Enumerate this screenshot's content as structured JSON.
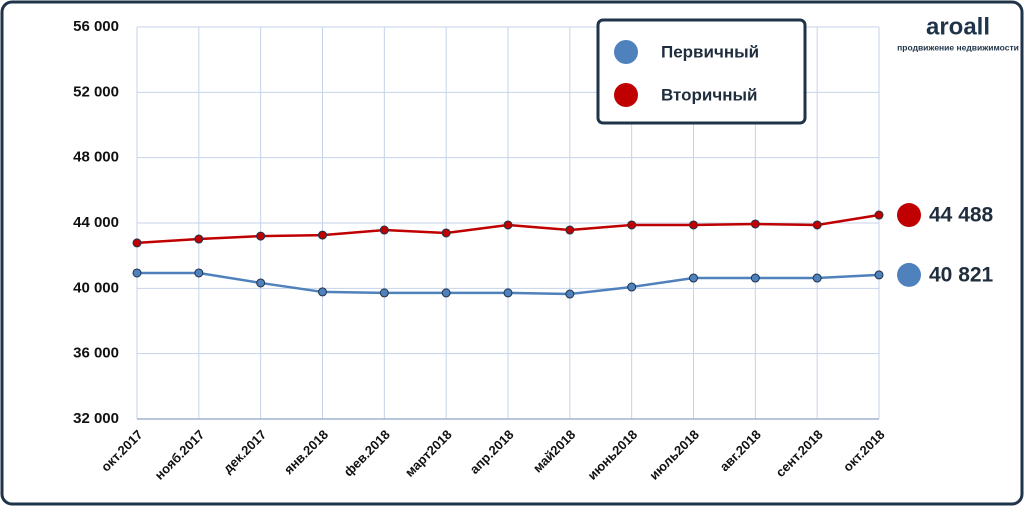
{
  "logo": "aroall",
  "logo_tagline": "продвижение недвижимости",
  "chart_data": {
    "type": "line",
    "categories": [
      "окт.2017",
      "нояб.2017",
      "дек.2017",
      "янв.2018",
      "фев.2018",
      "март2018",
      "апр.2018",
      "май2018",
      "июнь2018",
      "июль2018",
      "авг.2018",
      "сент.2018",
      "окт.2018"
    ],
    "series": [
      {
        "name": "Первичный",
        "color": "#4f81bd",
        "values": [
          40940,
          40940,
          40330,
          39780,
          39720,
          39720,
          39720,
          39650,
          40080,
          40630,
          40630,
          40630,
          40821
        ],
        "value_labels": [
          null,
          null,
          null,
          null,
          null,
          null,
          null,
          null,
          null,
          null,
          null,
          null,
          "40 821"
        ]
      },
      {
        "name": "Вторичный",
        "color": "#c00000",
        "values": [
          42780,
          43020,
          43200,
          43260,
          43570,
          43390,
          43880,
          43570,
          43880,
          43880,
          43940,
          43880,
          44488
        ],
        "value_labels": [
          null,
          null,
          null,
          null,
          null,
          null,
          null,
          null,
          null,
          null,
          null,
          null,
          "44 488"
        ]
      }
    ],
    "ylim": [
      32000,
      56000
    ],
    "yticks": [
      {
        "value": 32000,
        "label": "32 000"
      },
      {
        "value": 36000,
        "label": "36 000"
      },
      {
        "value": 40000,
        "label": "40 000"
      },
      {
        "value": 44000,
        "label": "44 000"
      },
      {
        "value": 48000,
        "label": "48 000"
      },
      {
        "value": 52000,
        "label": "52 000"
      },
      {
        "value": 56000,
        "label": "56 000"
      }
    ],
    "grid": true
  }
}
